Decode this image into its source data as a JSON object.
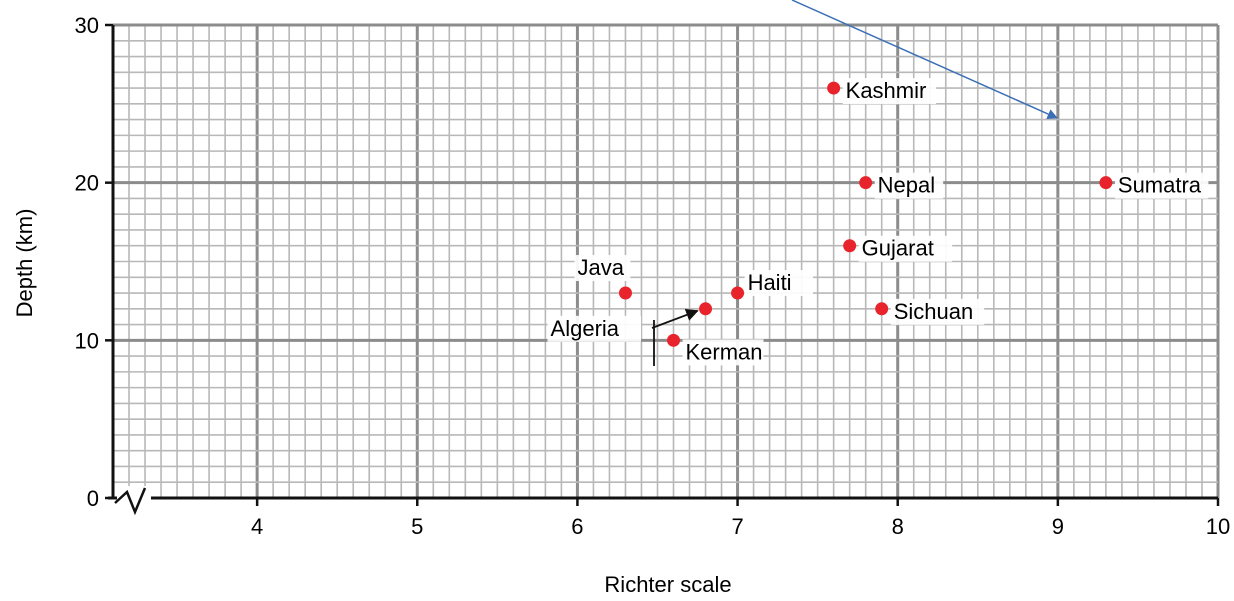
{
  "chart_data": {
    "type": "scatter",
    "title": "",
    "xlabel": "Richter scale",
    "ylabel": "Depth (km)",
    "xlim": [
      3.1,
      10
    ],
    "ylim": [
      0,
      30
    ],
    "x_ticks": [
      4,
      5,
      6,
      7,
      8,
      9,
      10
    ],
    "y_ticks": [
      0,
      10,
      20,
      30
    ],
    "axis_break": "x-axis near origin",
    "grid": true,
    "point_color": "#e8232b",
    "points": [
      {
        "label": "Java",
        "x": 6.3,
        "y": 13
      },
      {
        "label": "Algeria",
        "x": 6.8,
        "y": 12
      },
      {
        "label": "Kerman",
        "x": 6.6,
        "y": 10
      },
      {
        "label": "Haiti",
        "x": 7.0,
        "y": 13
      },
      {
        "label": "Kashmir",
        "x": 7.6,
        "y": 26
      },
      {
        "label": "Nepal",
        "x": 7.8,
        "y": 20
      },
      {
        "label": "Gujarat",
        "x": 7.7,
        "y": 16
      },
      {
        "label": "Sichuan",
        "x": 7.9,
        "y": 12
      },
      {
        "label": "Sumatra",
        "x": 9.3,
        "y": 20
      }
    ]
  }
}
